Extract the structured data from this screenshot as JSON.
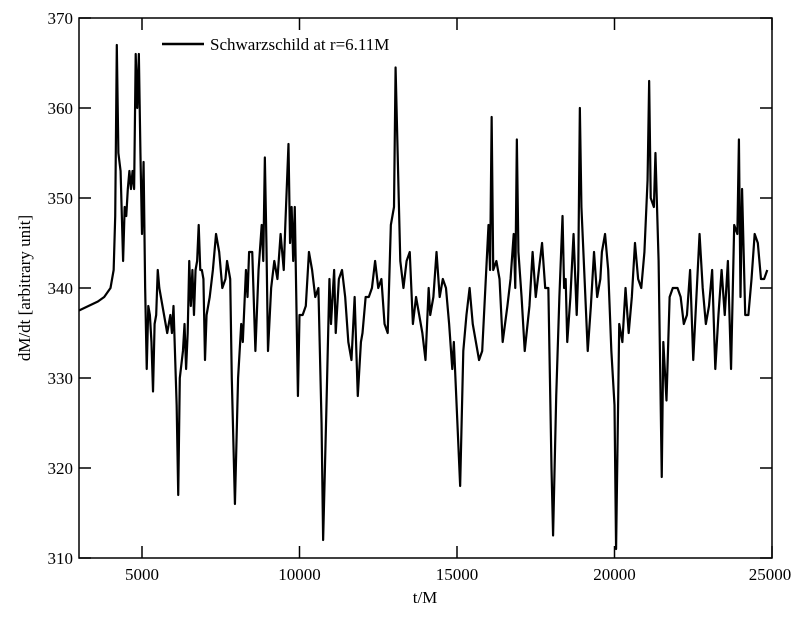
{
  "chart_data": {
    "type": "line",
    "xlabel": "t/M",
    "ylabel": "dM/dt [arbitrary unit]",
    "xlim": [
      3000,
      25000
    ],
    "ylim": [
      310,
      370
    ],
    "xticks": [
      5000,
      10000,
      15000,
      20000,
      25000
    ],
    "yticks": [
      310,
      320,
      330,
      340,
      350,
      360,
      370
    ],
    "legend": "upper left",
    "x": [
      3000,
      3300,
      3600,
      3800,
      3900,
      4000,
      4100,
      4150,
      4200,
      4250,
      4320,
      4400,
      4450,
      4500,
      4550,
      4600,
      4650,
      4700,
      4750,
      4800,
      4850,
      4900,
      4950,
      5000,
      5050,
      5100,
      5150,
      5200,
      5250,
      5300,
      5350,
      5400,
      5450,
      5500,
      5550,
      5600,
      5700,
      5800,
      5900,
      5950,
      6000,
      6100,
      6150,
      6200,
      6300,
      6350,
      6400,
      6450,
      6500,
      6550,
      6600,
      6650,
      6700,
      6750,
      6800,
      6850,
      6900,
      6950,
      7000,
      7050,
      7150,
      7250,
      7350,
      7450,
      7550,
      7650,
      7700,
      7800,
      7850,
      7950,
      8050,
      8150,
      8200,
      8300,
      8350,
      8400,
      8500,
      8600,
      8700,
      8800,
      8850,
      8900,
      8950,
      9000,
      9100,
      9200,
      9300,
      9400,
      9500,
      9550,
      9650,
      9700,
      9750,
      9800,
      9850,
      9950,
      10000,
      10100,
      10200,
      10300,
      10400,
      10500,
      10600,
      10700,
      10750,
      10850,
      10950,
      11000,
      11100,
      11150,
      11250,
      11350,
      11450,
      11550,
      11650,
      11750,
      11850,
      11950,
      12000,
      12100,
      12200,
      12300,
      12400,
      12500,
      12600,
      12700,
      12800,
      12900,
      13000,
      13050,
      13150,
      13200,
      13300,
      13400,
      13500,
      13600,
      13700,
      13800,
      13900,
      14000,
      14100,
      14150,
      14250,
      14350,
      14450,
      14550,
      14650,
      14750,
      14850,
      14900,
      15000,
      15100,
      15200,
      15300,
      15400,
      15500,
      15600,
      15700,
      15800,
      15900,
      16000,
      16050,
      16100,
      16150,
      16250,
      16350,
      16450,
      16600,
      16700,
      16800,
      16850,
      16900,
      16950,
      17050,
      17150,
      17300,
      17400,
      17500,
      17600,
      17700,
      17800,
      17900,
      17950,
      18000,
      18050,
      18150,
      18250,
      18350,
      18400,
      18450,
      18500,
      18600,
      18700,
      18800,
      18850,
      18900,
      18950,
      19050,
      19150,
      19250,
      19350,
      19450,
      19550,
      19600,
      19700,
      19800,
      19900,
      20000,
      20050,
      20150,
      20250,
      20350,
      20450,
      20550,
      20650,
      20750,
      20850,
      20950,
      21050,
      21100,
      21150,
      21250,
      21300,
      21400,
      21500,
      21550,
      21650,
      21750,
      21850,
      22000,
      22100,
      22200,
      22300,
      22400,
      22500,
      22600,
      22700,
      22800,
      22900,
      23000,
      23100,
      23200,
      23300,
      23400,
      23500,
      23600,
      23700,
      23800,
      23900,
      23950,
      24000,
      24050,
      24150,
      24250,
      24350,
      24450,
      24550,
      24650,
      24750,
      24850
    ],
    "series": [
      {
        "name": "Schwarzschild at r=6.11M",
        "color": "#000000",
        "values": [
          337.5,
          338,
          338.5,
          339,
          339.5,
          340,
          342,
          348,
          367,
          355,
          353,
          343,
          349,
          348,
          351,
          353,
          351,
          353,
          351,
          366,
          360,
          366,
          355,
          346,
          354,
          340,
          331,
          338,
          337,
          334,
          328.5,
          336,
          337,
          342,
          340,
          339,
          337,
          335,
          337,
          335,
          338,
          327,
          317,
          330,
          333,
          336,
          331,
          335,
          343,
          338,
          342,
          337,
          342,
          343,
          347,
          342,
          342,
          341,
          332,
          337,
          339,
          342,
          346,
          344,
          340,
          341,
          343,
          341,
          330,
          316,
          330,
          336,
          334,
          342,
          339,
          344,
          344,
          333,
          342,
          347,
          343,
          354.5,
          345,
          333,
          340,
          343,
          341,
          346,
          342,
          347,
          356,
          345,
          349,
          343,
          349,
          328,
          337,
          337,
          338,
          344,
          342,
          339,
          340,
          325,
          312,
          326,
          341,
          336,
          342,
          335,
          341,
          342,
          339,
          334,
          332,
          339,
          328,
          334,
          335,
          339,
          339,
          340,
          343,
          340,
          341,
          336,
          335,
          347,
          349,
          364.5,
          350,
          343,
          340,
          343,
          344,
          336,
          339,
          337,
          335,
          332,
          340,
          337,
          339,
          344,
          339,
          341,
          340,
          336,
          331,
          334,
          326,
          318,
          333,
          337,
          340,
          336,
          334,
          332,
          333,
          340,
          347,
          342,
          359,
          342,
          343,
          341,
          334,
          338,
          341,
          346,
          340,
          356.5,
          344,
          339,
          333,
          338,
          344,
          339,
          342,
          345,
          340,
          340,
          330,
          320,
          312.5,
          328,
          339,
          348,
          340,
          341,
          334,
          339,
          346,
          337,
          342,
          360,
          349,
          341,
          333,
          338,
          344,
          339,
          341,
          344,
          346,
          342,
          333,
          327,
          311,
          336,
          334,
          340,
          335,
          339,
          345,
          341,
          340,
          344,
          352,
          363,
          350,
          349,
          355,
          343,
          319,
          334,
          327.5,
          339,
          340,
          340,
          339,
          336,
          337,
          342,
          332,
          339,
          346,
          340,
          336,
          338,
          342,
          331,
          337,
          342,
          337,
          343,
          331,
          347,
          346,
          356.5,
          339,
          351,
          337,
          337,
          341,
          346,
          345,
          341,
          341,
          342
        ]
      }
    ]
  }
}
